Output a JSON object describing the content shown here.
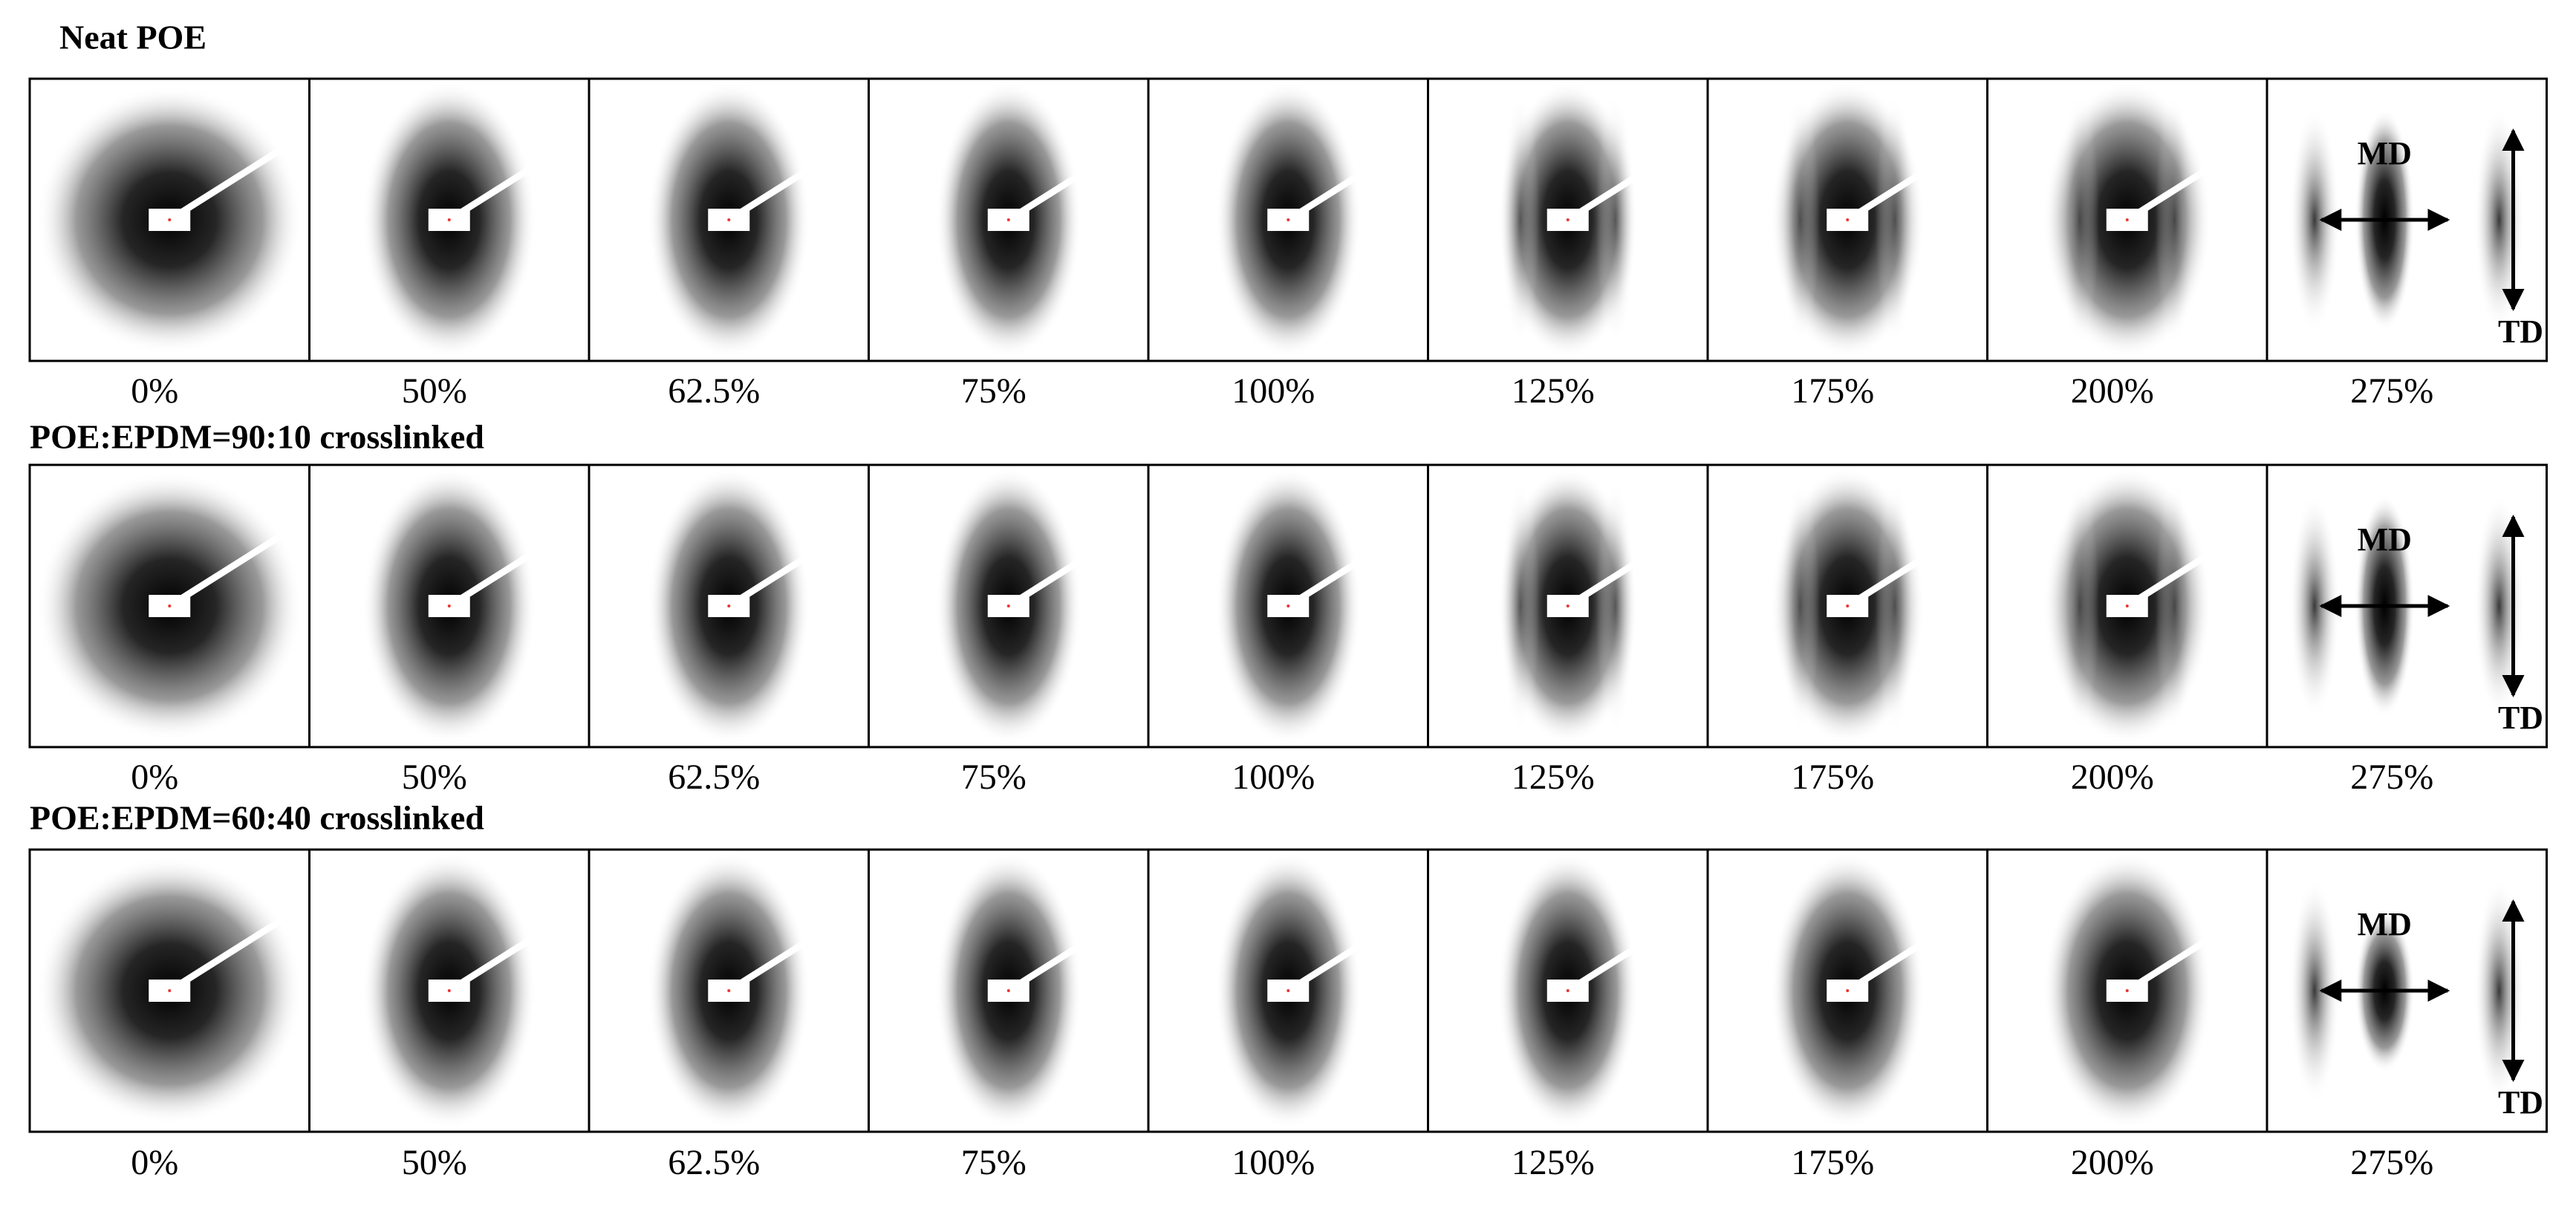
{
  "rows": [
    {
      "title": "Neat POE",
      "labels": [
        "0%",
        "50%",
        "62.5%",
        "75%",
        "100%",
        "125%",
        "175%",
        "200%",
        "275%"
      ],
      "md": "MD",
      "td": "TD"
    },
    {
      "title": "POE:EPDM=90:10 crosslinked",
      "labels": [
        "0%",
        "50%",
        "62.5%",
        "75%",
        "100%",
        "125%",
        "175%",
        "200%",
        "275%"
      ],
      "md": "MD",
      "td": "TD"
    },
    {
      "title": "POE:EPDM=60:40 crosslinked",
      "labels": [
        "0%",
        "50%",
        "62.5%",
        "75%",
        "100%",
        "125%",
        "175%",
        "200%",
        "275%"
      ],
      "md": "MD",
      "td": "TD"
    }
  ]
}
